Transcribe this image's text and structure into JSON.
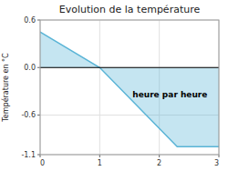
{
  "chart_data": {
    "type": "area",
    "title": "Evolution de la température",
    "y_label": "Température en °C",
    "x": [
      0,
      1,
      2.3,
      3
    ],
    "values": [
      0.45,
      0.0,
      -1.0,
      -1.0
    ],
    "color": "#5ab4d6",
    "xlim": [
      0,
      3
    ],
    "ylim": [
      -1.1,
      0.6
    ],
    "xticks": [
      0,
      1,
      2,
      3
    ],
    "yticks": [
      -1.1,
      -0.6,
      {
        "value": 0.0,
        "label": "0.0"
      },
      0.6
    ],
    "grid": true,
    "annotations": [
      {
        "text": "heure par heure",
        "x": 1.55,
        "y": -0.38
      }
    ]
  }
}
